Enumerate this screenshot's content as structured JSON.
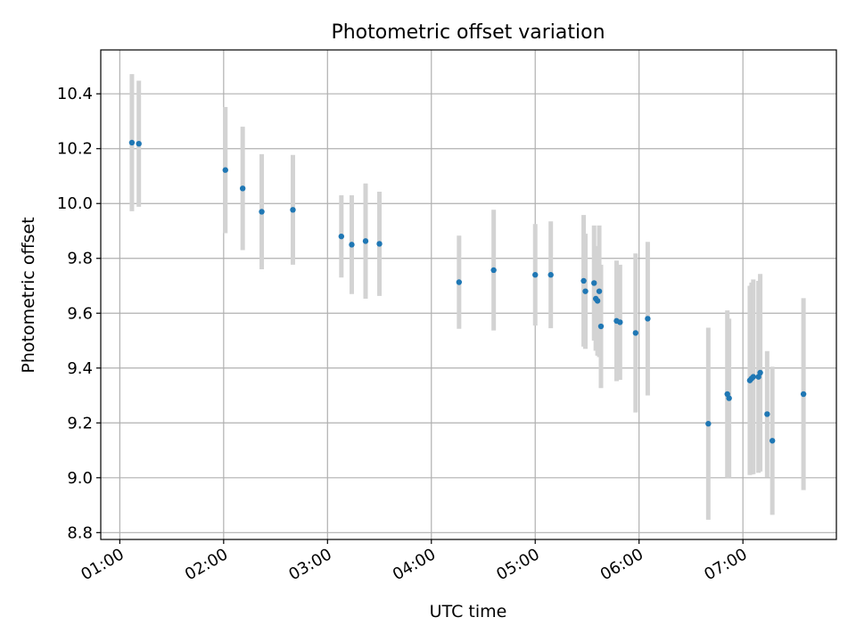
{
  "chart_data": {
    "type": "scatter",
    "title": "Photometric offset variation",
    "xlabel": "UTC time",
    "ylabel": "Photometric offset",
    "xlim": [
      "00:49",
      "07:54"
    ],
    "ylim": [
      8.775,
      10.56
    ],
    "x_ticks": [
      "01:00",
      "02:00",
      "03:00",
      "04:00",
      "05:00",
      "06:00",
      "07:00"
    ],
    "y_ticks": [
      "8.8",
      "9.0",
      "9.2",
      "9.4",
      "9.6",
      "9.8",
      "10.0",
      "10.2",
      "10.4"
    ],
    "grid": true,
    "colors": {
      "marker": "#1f77b4",
      "errorbar": "#d3d3d3",
      "grid": "#b0b0b0"
    },
    "series": [
      {
        "points": [
          {
            "x": "01:07",
            "y": 10.222,
            "err": 0.25
          },
          {
            "x": "01:11",
            "y": 10.218,
            "err": 0.23
          },
          {
            "x": "02:01",
            "y": 10.122,
            "err": 0.23
          },
          {
            "x": "02:11",
            "y": 10.055,
            "err": 0.225
          },
          {
            "x": "02:22",
            "y": 9.97,
            "err": 0.21
          },
          {
            "x": "02:40",
            "y": 9.977,
            "err": 0.2
          },
          {
            "x": "03:08",
            "y": 9.88,
            "err": 0.15
          },
          {
            "x": "03:14",
            "y": 9.85,
            "err": 0.18
          },
          {
            "x": "03:22",
            "y": 9.863,
            "err": 0.21
          },
          {
            "x": "03:30",
            "y": 9.853,
            "err": 0.19
          },
          {
            "x": "04:16",
            "y": 9.713,
            "err": 0.17
          },
          {
            "x": "04:36",
            "y": 9.757,
            "err": 0.22
          },
          {
            "x": "05:00",
            "y": 9.74,
            "err": 0.185
          },
          {
            "x": "05:09",
            "y": 9.74,
            "err": 0.195
          },
          {
            "x": "05:28",
            "y": 9.718,
            "err": 0.24
          },
          {
            "x": "05:29",
            "y": 9.68,
            "err": 0.21
          },
          {
            "x": "05:34",
            "y": 9.71,
            "err": 0.21
          },
          {
            "x": "05:35",
            "y": 9.653,
            "err": 0.19
          },
          {
            "x": "05:36",
            "y": 9.645,
            "err": 0.2
          },
          {
            "x": "05:37",
            "y": 9.68,
            "err": 0.24
          },
          {
            "x": "05:38",
            "y": 9.552,
            "err": 0.225
          },
          {
            "x": "05:47",
            "y": 9.572,
            "err": 0.22
          },
          {
            "x": "05:49",
            "y": 9.567,
            "err": 0.21
          },
          {
            "x": "05:58",
            "y": 9.528,
            "err": 0.29
          },
          {
            "x": "06:05",
            "y": 9.58,
            "err": 0.28
          },
          {
            "x": "06:40",
            "y": 9.197,
            "err": 0.35
          },
          {
            "x": "06:51",
            "y": 9.305,
            "err": 0.305
          },
          {
            "x": "06:52",
            "y": 9.29,
            "err": 0.29
          },
          {
            "x": "07:04",
            "y": 9.355,
            "err": 0.345
          },
          {
            "x": "07:05",
            "y": 9.362,
            "err": 0.35
          },
          {
            "x": "07:06",
            "y": 9.368,
            "err": 0.355
          },
          {
            "x": "07:09",
            "y": 9.368,
            "err": 0.35
          },
          {
            "x": "07:10",
            "y": 9.383,
            "err": 0.36
          },
          {
            "x": "07:14",
            "y": 9.232,
            "err": 0.23
          },
          {
            "x": "07:17",
            "y": 9.135,
            "err": 0.27
          },
          {
            "x": "07:35",
            "y": 9.305,
            "err": 0.35
          }
        ]
      }
    ]
  }
}
